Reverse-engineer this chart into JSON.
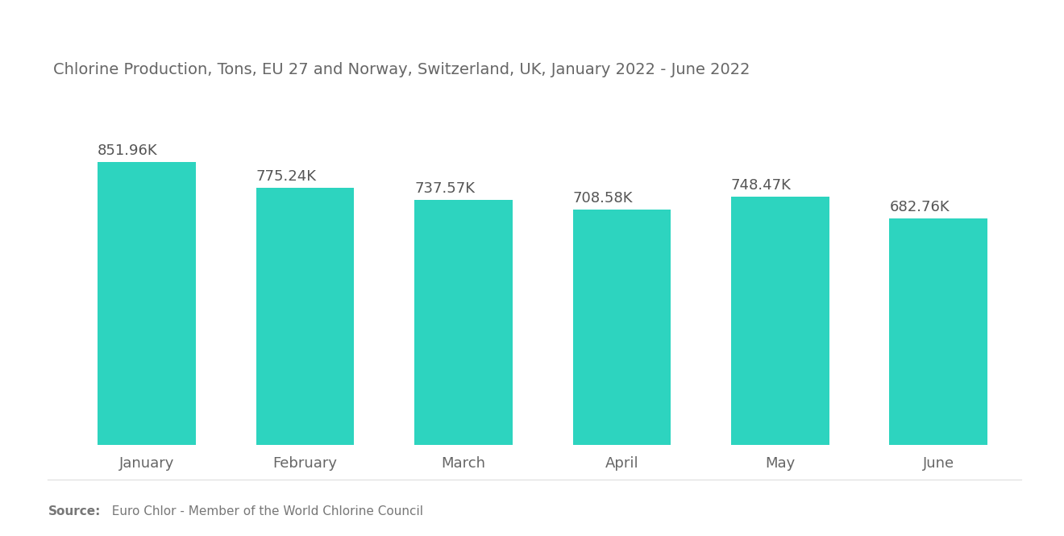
{
  "title": "Chlorine Production, Tons, EU 27 and Norway, Switzerland, UK, January 2022 - June 2022",
  "categories": [
    "January",
    "February",
    "March",
    "April",
    "May",
    "June"
  ],
  "values": [
    851960,
    775240,
    737570,
    708580,
    748470,
    682760
  ],
  "labels": [
    "851.96K",
    "775.24K",
    "737.57K",
    "708.58K",
    "748.47K",
    "682.76K"
  ],
  "bar_color": "#2DD4BF",
  "background_color": "#ffffff",
  "title_color": "#666666",
  "label_color": "#555555",
  "tick_color": "#666666",
  "source_bold": "Source:",
  "source_text": "  Euro Chlor - Member of the World Chlorine Council",
  "ylim": [
    0,
    1050000
  ],
  "bar_width": 0.62,
  "title_fontsize": 14,
  "label_fontsize": 13,
  "tick_fontsize": 13,
  "source_fontsize": 11
}
